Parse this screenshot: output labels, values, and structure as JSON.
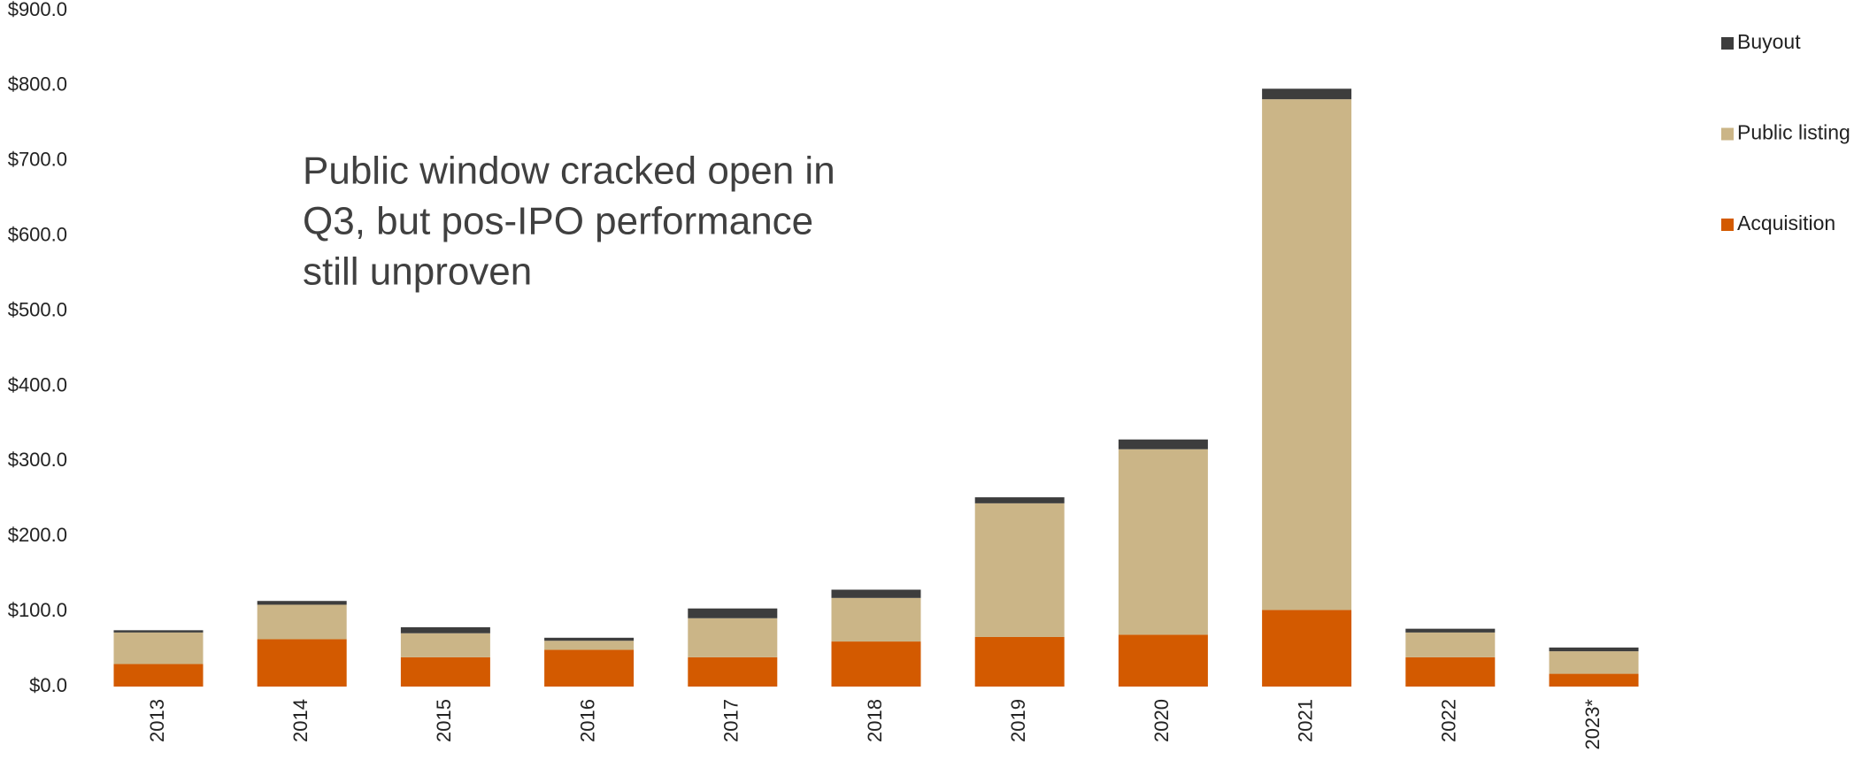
{
  "chart_data": {
    "type": "bar",
    "stacked": true,
    "annotation": [
      "Public window cracked open in",
      "Q3, but pos-IPO performance",
      "still unproven"
    ],
    "categories": [
      "2013",
      "2014",
      "2015",
      "2016",
      "2017",
      "2018",
      "2019",
      "2020",
      "2021",
      "2022",
      "2023*"
    ],
    "series": [
      {
        "name": "Acquisition",
        "color": "#d35a00",
        "values": [
          30,
          63,
          39,
          49,
          39,
          60,
          66,
          69,
          102,
          39,
          17
        ]
      },
      {
        "name": "Public listing",
        "color": "#cbb587",
        "values": [
          42,
          46,
          32,
          12,
          52,
          58,
          178,
          247,
          680,
          33,
          30
        ]
      },
      {
        "name": "Buyout",
        "color": "#3d3d3d",
        "values": [
          3,
          5,
          8,
          4,
          13,
          11,
          8,
          13,
          14,
          5,
          5
        ]
      }
    ],
    "ylim": [
      0,
      900
    ],
    "yticks": [
      {
        "value": 0,
        "label": "$0.0"
      },
      {
        "value": 100,
        "label": "$100.0"
      },
      {
        "value": 200,
        "label": "$200.0"
      },
      {
        "value": 300,
        "label": "$300.0"
      },
      {
        "value": 400,
        "label": "$400.0"
      },
      {
        "value": 500,
        "label": "$500.0"
      },
      {
        "value": 600,
        "label": "$600.0"
      },
      {
        "value": 700,
        "label": "$700.0"
      },
      {
        "value": 800,
        "label": "$800.0"
      },
      {
        "value": 900,
        "label": "$900.0"
      }
    ],
    "legend": "top-right"
  }
}
